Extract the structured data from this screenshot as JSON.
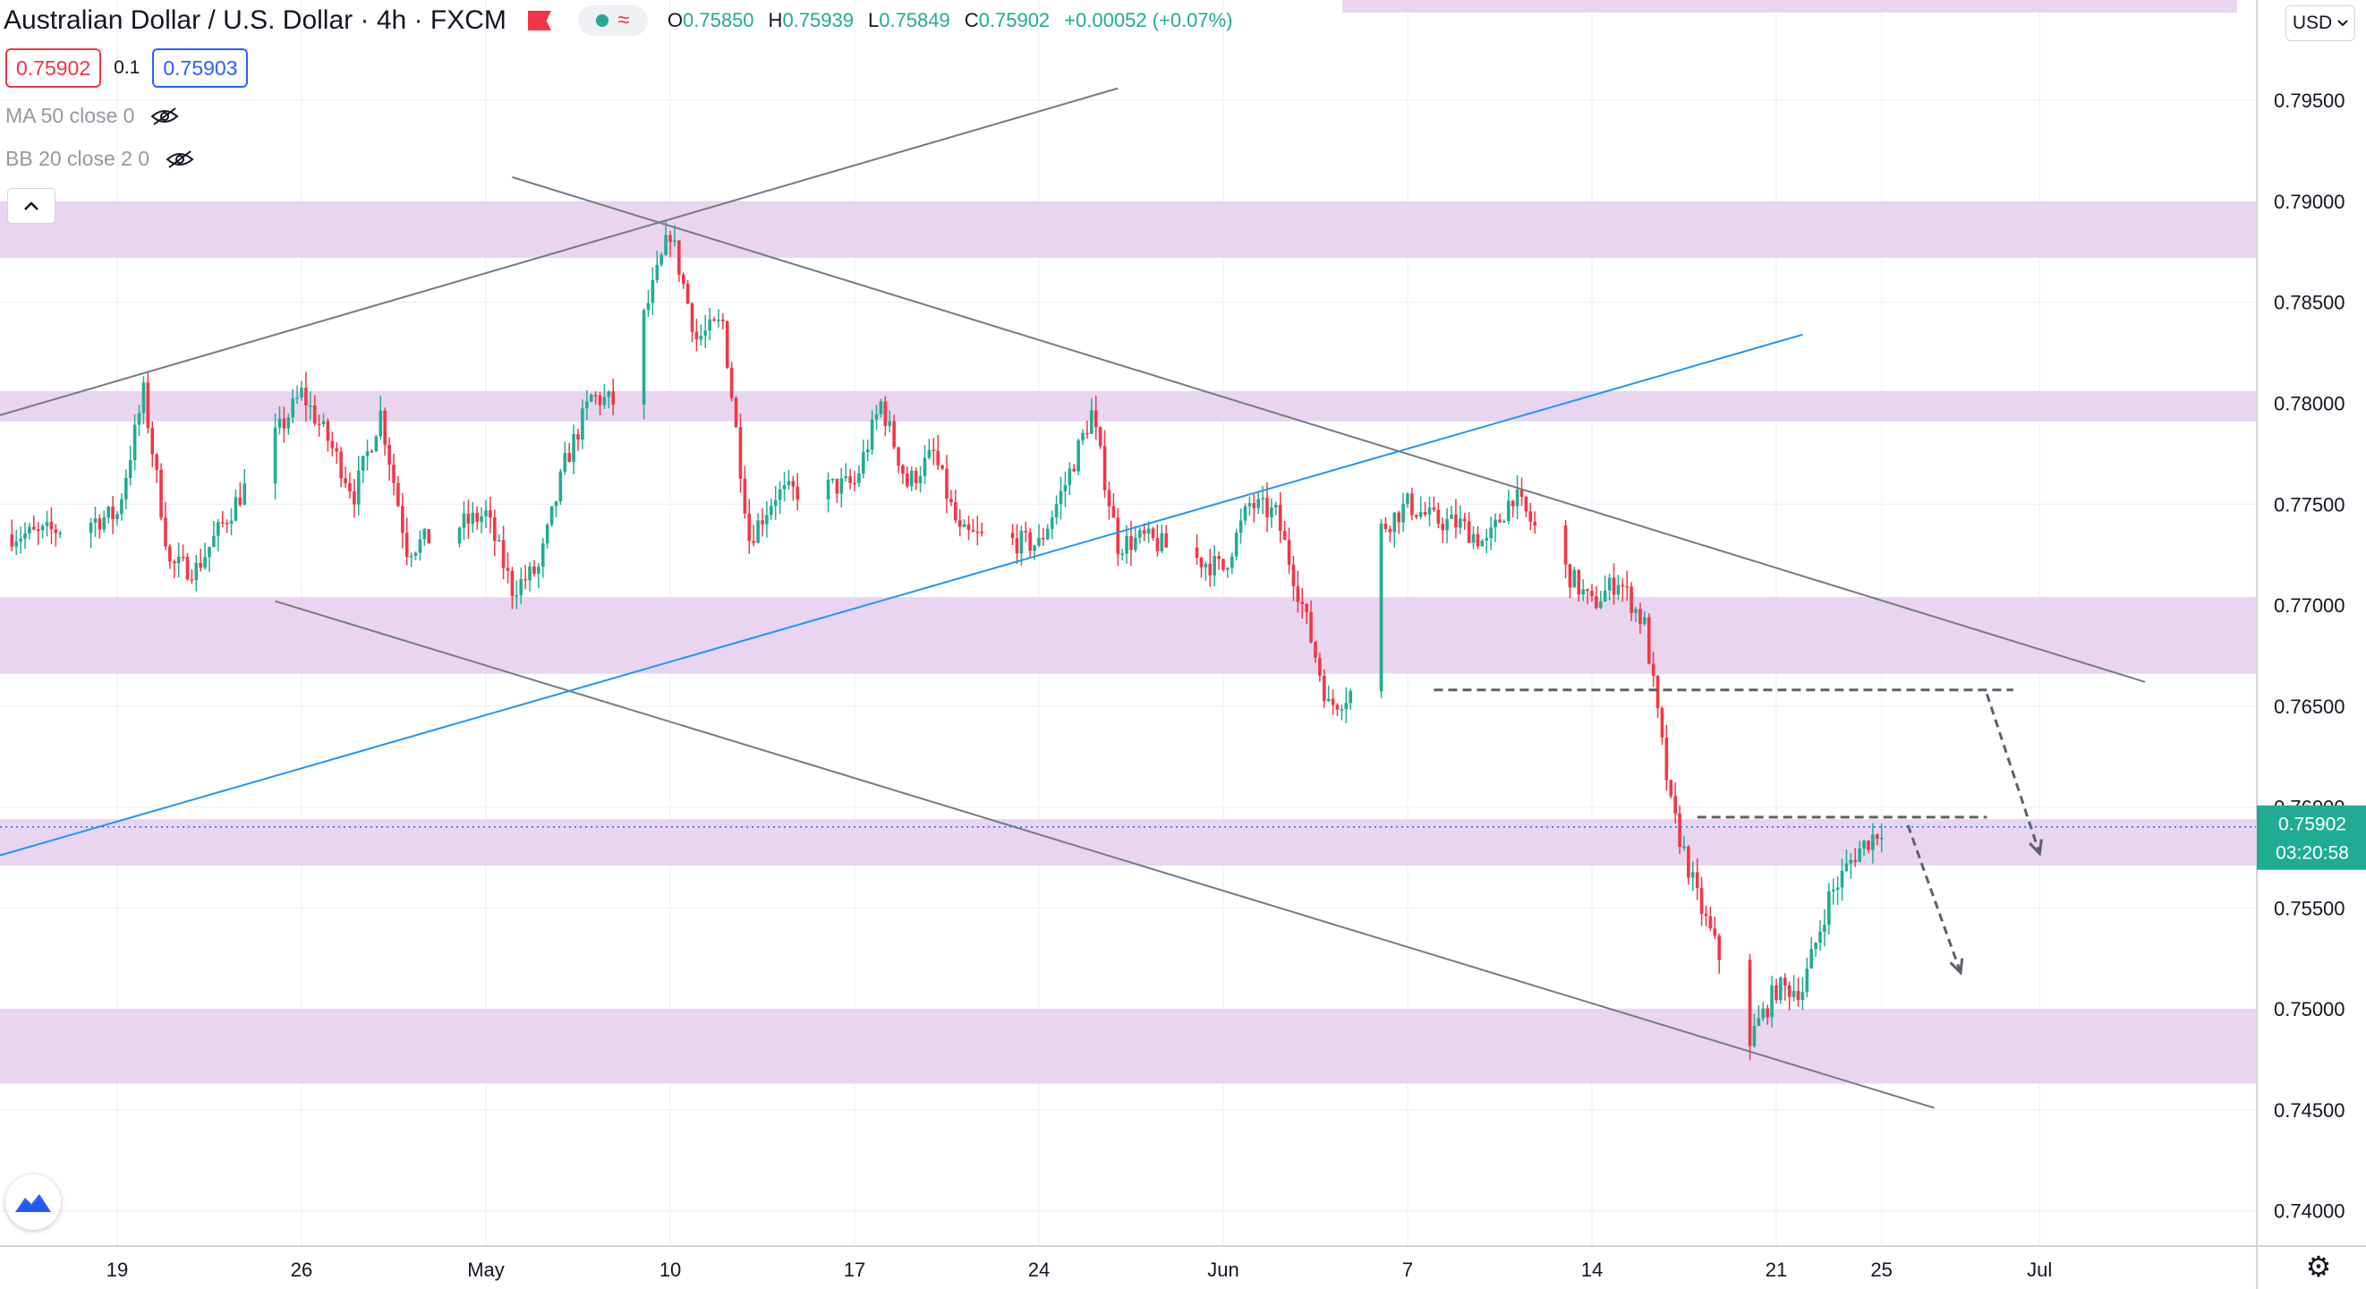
{
  "header": {
    "symbol": "Australian Dollar / U.S. Dollar",
    "interval": "4h",
    "exchange": "FXCM",
    "ohlc": {
      "o_label": "O",
      "o": "0.75850",
      "h_label": "H",
      "h": "0.75939",
      "l_label": "L",
      "l": "0.75849",
      "c_label": "C",
      "c": "0.75902",
      "change": "+0.00052 (+0.07%)"
    },
    "sell_price": "0.75902",
    "spread": "0.1",
    "buy_price": "0.75903"
  },
  "indicators": [
    {
      "label": "MA 50 close 0"
    },
    {
      "label": "BB 20 close 2 0"
    }
  ],
  "currency_button": "USD",
  "last_price": {
    "value": "0.75902",
    "countdown": "03:20:58"
  },
  "colors": {
    "up": "#22ab94",
    "down": "#f23645",
    "zone": "#e9d5f0",
    "trend_blue": "#2196f3",
    "trend_gray": "#787b86"
  },
  "chart_data": {
    "type": "candlestick",
    "title": "Australian Dollar / U.S. Dollar · 4h · FXCM",
    "y_ticks": [
      "0.79500",
      "0.79000",
      "0.78500",
      "0.78000",
      "0.77500",
      "0.77000",
      "0.76500",
      "0.76000",
      "0.75500",
      "0.75000",
      "0.74500",
      "0.74000"
    ],
    "ylim": [
      0.7395,
      0.7982
    ],
    "x_ticks": [
      "19",
      "26",
      "May",
      "10",
      "17",
      "24",
      "Jun",
      "7",
      "14",
      "21",
      "25",
      "Jul"
    ],
    "x_tick_dates": [
      "2021-04-19",
      "2021-04-26",
      "2021-05-03",
      "2021-05-10",
      "2021-05-17",
      "2021-05-24",
      "2021-05-31",
      "2021-06-07",
      "2021-06-14",
      "2021-06-21",
      "2021-06-25",
      "2021-07-01"
    ],
    "zones": [
      [
        0.7872,
        0.79
      ],
      [
        0.7791,
        0.7806
      ],
      [
        0.7666,
        0.7704
      ],
      [
        0.7571,
        0.7594
      ],
      [
        0.7463,
        0.75
      ]
    ],
    "close_path": [
      [
        "2021-04-16",
        0.7735
      ],
      [
        "2021-04-19",
        0.7745
      ],
      [
        "2021-04-20",
        0.7805
      ],
      [
        "2021-04-21",
        0.772
      ],
      [
        "2021-04-22",
        0.7718
      ],
      [
        "2021-04-23",
        0.774
      ],
      [
        "2021-04-26",
        0.7805
      ],
      [
        "2021-04-27",
        0.7782
      ],
      [
        "2021-04-28",
        0.7755
      ],
      [
        "2021-04-29",
        0.7795
      ],
      [
        "2021-04-30",
        0.7728
      ],
      [
        "2021-05-03",
        0.7745
      ],
      [
        "2021-05-04",
        0.7708
      ],
      [
        "2021-05-05",
        0.7718
      ],
      [
        "2021-05-06",
        0.777
      ],
      [
        "2021-05-07",
        0.7803
      ],
      [
        "2021-05-08",
        0.78
      ],
      [
        "2021-05-10",
        0.7885
      ],
      [
        "2021-05-11",
        0.7832
      ],
      [
        "2021-05-12",
        0.784
      ],
      [
        "2021-05-13",
        0.7733
      ],
      [
        "2021-05-14",
        0.7755
      ],
      [
        "2021-05-17",
        0.776
      ],
      [
        "2021-05-18",
        0.78
      ],
      [
        "2021-05-19",
        0.776
      ],
      [
        "2021-05-20",
        0.7775
      ],
      [
        "2021-05-21",
        0.7735
      ],
      [
        "2021-05-24",
        0.773
      ],
      [
        "2021-05-25",
        0.776
      ],
      [
        "2021-05-26",
        0.7795
      ],
      [
        "2021-05-27",
        0.773
      ],
      [
        "2021-05-28",
        0.7733
      ],
      [
        "2021-05-31",
        0.7718
      ],
      [
        "2021-06-01",
        0.775
      ],
      [
        "2021-06-02",
        0.7745
      ],
      [
        "2021-06-03",
        0.77
      ],
      [
        "2021-06-04",
        0.765
      ],
      [
        "2021-06-05",
        0.7658
      ],
      [
        "2021-06-06",
        0.7738
      ],
      [
        "2021-06-07",
        0.775
      ],
      [
        "2021-06-08",
        0.7742
      ],
      [
        "2021-06-09",
        0.774
      ],
      [
        "2021-06-10",
        0.773
      ],
      [
        "2021-06-11",
        0.7755
      ],
      [
        "2021-06-12",
        0.7735
      ],
      [
        "2021-06-14",
        0.77
      ],
      [
        "2021-06-15",
        0.7713
      ],
      [
        "2021-06-16",
        0.769
      ],
      [
        "2021-06-17",
        0.76
      ],
      [
        "2021-06-18",
        0.7555
      ],
      [
        "2021-06-19",
        0.752
      ],
      [
        "2021-06-20",
        0.7485
      ],
      [
        "2021-06-21",
        0.751
      ],
      [
        "2021-06-22",
        0.751
      ],
      [
        "2021-06-23",
        0.7555
      ],
      [
        "2021-06-24",
        0.7577
      ],
      [
        "2021-06-25",
        0.759
      ]
    ],
    "trend_lines": [
      {
        "color": "gray",
        "from": [
          "2021-04-14",
          0.7792
        ],
        "to": [
          "2021-05-27",
          0.7956
        ]
      },
      {
        "color": "gray",
        "from": [
          "2021-05-04",
          0.7912
        ],
        "to": [
          "2021-07-05",
          0.7662
        ]
      },
      {
        "color": "gray",
        "from": [
          "2021-04-25",
          0.7702
        ],
        "to": [
          "2021-06-27",
          0.7451
        ]
      },
      {
        "color": "blue",
        "from": [
          "2021-04-14",
          0.7574
        ],
        "to": [
          "2021-06-22",
          0.7834
        ]
      }
    ],
    "dashed_lines": [
      {
        "from": [
          "2021-06-08",
          0.7658
        ],
        "to": [
          "2021-06-30",
          0.7658
        ]
      },
      {
        "from": [
          "2021-06-18",
          0.7595
        ],
        "to": [
          "2021-06-29",
          0.7595
        ]
      }
    ],
    "arrows": [
      {
        "from": [
          "2021-06-29",
          0.7656
        ],
        "to": [
          "2021-07-01",
          0.7577
        ]
      },
      {
        "from": [
          "2021-06-26",
          0.7591
        ],
        "to": [
          "2021-06-28",
          0.7518
        ]
      }
    ]
  }
}
